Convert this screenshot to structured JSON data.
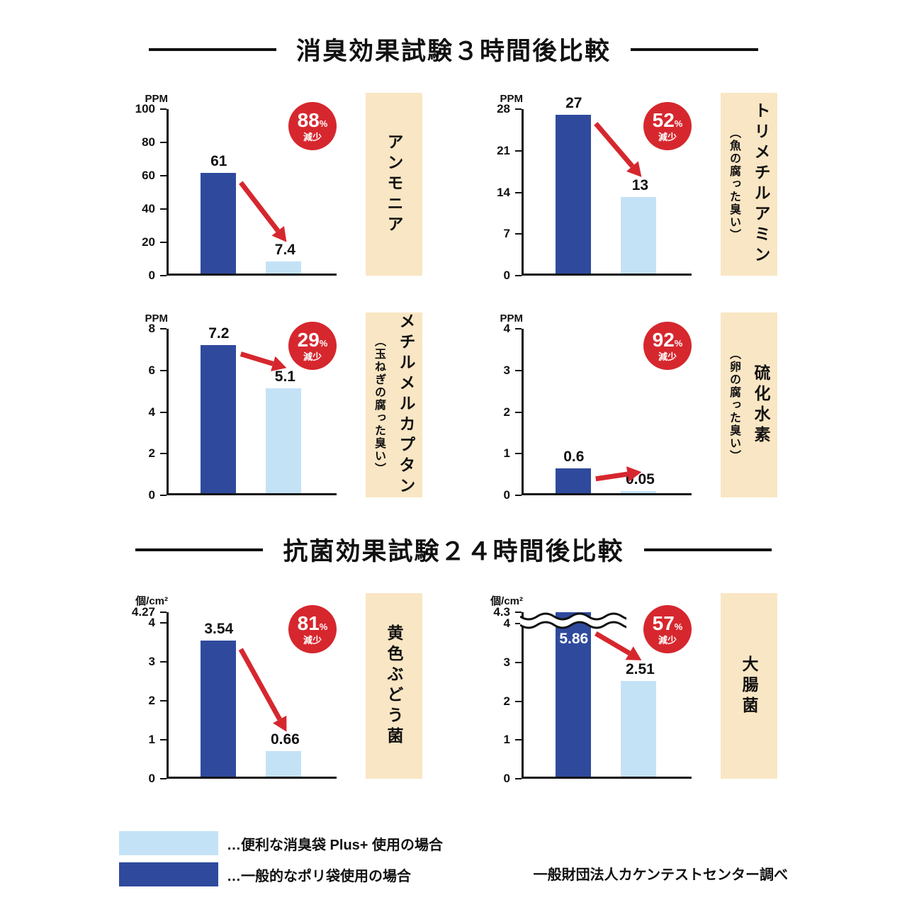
{
  "colors": {
    "bar_dark": "#2f4a9d",
    "bar_light": "#c4e2f6",
    "badge_red": "#d6272e",
    "label_beige": "#f9e6c4",
    "ink": "#111111"
  },
  "sections": [
    {
      "title": "消臭効果試験３時間後比較",
      "chart_indexes": [
        0,
        1,
        2,
        3
      ]
    },
    {
      "title": "抗菌効果試験２４時間後比較",
      "chart_indexes": [
        4,
        5
      ]
    }
  ],
  "legend": {
    "items": [
      {
        "swatch": "light",
        "label": "…便利な消臭袋 Plus+ 使用の場合"
      },
      {
        "swatch": "dark",
        "label": "…一般的なポリ袋使用の場合"
      }
    ],
    "source": "一般財団法人カケンテストセンター調べ"
  },
  "chart_data": [
    {
      "type": "bar",
      "name": "ammonia",
      "title": "アンモニア",
      "subtitle": "",
      "unit": "PPM",
      "ylim": [
        0,
        100
      ],
      "yticks": [
        0,
        20,
        40,
        60,
        80,
        100
      ],
      "ytick_labels": [
        "0",
        "20",
        "40",
        "60",
        "80",
        "100"
      ],
      "series": [
        {
          "name": "一般的なポリ袋使用の場合",
          "value": 61
        },
        {
          "name": "便利な消臭袋 Plus+ 使用の場合",
          "value": 7.4
        }
      ],
      "value_labels": [
        "61",
        "7.4"
      ],
      "reduction": {
        "value": "88",
        "unit": "%",
        "word": "減少"
      }
    },
    {
      "type": "bar",
      "name": "trimethylamine",
      "title": "トリメチルアミン",
      "subtitle": "（魚の腐った臭い）",
      "unit": "PPM",
      "ylim": [
        0,
        28
      ],
      "yticks": [
        0,
        7,
        14,
        21,
        28
      ],
      "ytick_labels": [
        "0",
        "7",
        "14",
        "21",
        "28"
      ],
      "series": [
        {
          "name": "一般的なポリ袋使用の場合",
          "value": 27
        },
        {
          "name": "便利な消臭袋 Plus+ 使用の場合",
          "value": 13
        }
      ],
      "value_labels": [
        "27",
        "13"
      ],
      "reduction": {
        "value": "52",
        "unit": "%",
        "word": "減少"
      }
    },
    {
      "type": "bar",
      "name": "methyl-mercaptan",
      "title": "メチルメルカプタン",
      "subtitle": "（玉ねぎの腐った臭い）",
      "unit": "PPM",
      "ylim": [
        0,
        8
      ],
      "yticks": [
        0,
        2,
        4,
        6,
        8
      ],
      "ytick_labels": [
        "0",
        "2",
        "4",
        "6",
        "8"
      ],
      "series": [
        {
          "name": "一般的なポリ袋使用の場合",
          "value": 7.2
        },
        {
          "name": "便利な消臭袋 Plus+ 使用の場合",
          "value": 5.1
        }
      ],
      "value_labels": [
        "7.2",
        "5.1"
      ],
      "reduction": {
        "value": "29",
        "unit": "%",
        "word": "減少"
      }
    },
    {
      "type": "bar",
      "name": "hydrogen-sulfide",
      "title": "硫化水素",
      "subtitle": "（卵の腐った臭い）",
      "unit": "PPM",
      "ylim": [
        0,
        4
      ],
      "yticks": [
        0,
        1,
        2,
        3,
        4
      ],
      "ytick_labels": [
        "0",
        "1",
        "2",
        "3",
        "4"
      ],
      "series": [
        {
          "name": "一般的なポリ袋使用の場合",
          "value": 0.6
        },
        {
          "name": "便利な消臭袋 Plus+ 使用の場合",
          "value": 0.05
        }
      ],
      "value_labels": [
        "0.6",
        "0.05"
      ],
      "reduction": {
        "value": "92",
        "unit": "%",
        "word": "減少"
      }
    },
    {
      "type": "bar",
      "name": "staphylococcus",
      "title": "黄色ぶどう菌",
      "subtitle": "",
      "unit": "個/cm²",
      "ylim": [
        0,
        4.27
      ],
      "yticks": [
        0,
        1,
        2,
        3,
        4,
        4.27
      ],
      "ytick_labels": [
        "0",
        "1",
        "2",
        "3",
        "4",
        "4.27"
      ],
      "series": [
        {
          "name": "一般的なポリ袋使用の場合",
          "value": 3.54
        },
        {
          "name": "便利な消臭袋 Plus+ 使用の場合",
          "value": 0.66
        }
      ],
      "value_labels": [
        "3.54",
        "0.66"
      ],
      "reduction": {
        "value": "81",
        "unit": "%",
        "word": "減少"
      }
    },
    {
      "type": "bar",
      "name": "e-coli",
      "title": "大腸菌",
      "subtitle": "",
      "unit": "個/cm²",
      "ylim": [
        0,
        4.3
      ],
      "yticks": [
        0,
        1,
        2,
        3,
        4,
        4.3
      ],
      "ytick_labels": [
        "0",
        "1",
        "2",
        "3",
        "4",
        "4.3"
      ],
      "series": [
        {
          "name": "一般的なポリ袋使用の場合",
          "value": 5.86
        },
        {
          "name": "便利な消臭袋 Plus+ 使用の場合",
          "value": 2.51
        }
      ],
      "value_labels": [
        "5.86",
        "2.51"
      ],
      "reduction": {
        "value": "57",
        "unit": "%",
        "word": "減少"
      }
    }
  ]
}
